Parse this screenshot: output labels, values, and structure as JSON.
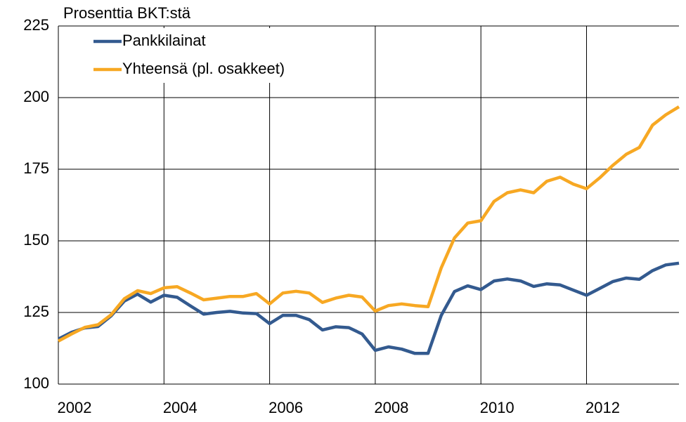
{
  "chart_data": {
    "type": "line",
    "title": "Prosenttia BKT:stä",
    "x": [
      2002,
      2002.25,
      2002.5,
      2002.75,
      2003,
      2003.25,
      2003.5,
      2003.75,
      2004,
      2004.25,
      2004.5,
      2004.75,
      2005,
      2005.25,
      2005.5,
      2005.75,
      2006,
      2006.25,
      2006.5,
      2006.75,
      2007,
      2007.25,
      2007.5,
      2007.75,
      2008,
      2008.25,
      2008.5,
      2008.75,
      2009,
      2009.25,
      2009.5,
      2009.75,
      2010,
      2010.25,
      2010.5,
      2010.75,
      2011,
      2011.25,
      2011.5,
      2011.75,
      2012,
      2012.25,
      2012.5,
      2012.75,
      2013,
      2013.25,
      2013.5,
      2013.75
    ],
    "series": [
      {
        "name": "Pankkilainat",
        "color": "#335a8f",
        "values": [
          115.7,
          118.1,
          119.6,
          120.1,
          123.8,
          129.0,
          131.4,
          128.6,
          131.0,
          130.3,
          127.3,
          124.4,
          125.0,
          125.4,
          124.8,
          124.6,
          121.1,
          124.0,
          124.0,
          122.5,
          118.9,
          120.0,
          119.7,
          117.5,
          111.8,
          113.0,
          112.2,
          110.7,
          110.7,
          124.0,
          132.3,
          134.3,
          133.0,
          136.0,
          136.7,
          136.0,
          134.1,
          135.0,
          134.6,
          132.8,
          131.0,
          133.4,
          135.8,
          137.0,
          136.6,
          139.6,
          141.6,
          142.2
        ]
      },
      {
        "name": "Yhteensä (pl. osakkeet)",
        "color": "#f7a823",
        "values": [
          115.0,
          117.5,
          119.8,
          120.7,
          124.2,
          129.8,
          132.6,
          131.6,
          133.6,
          134.0,
          131.8,
          129.4,
          130.0,
          130.6,
          130.6,
          131.6,
          128.0,
          131.8,
          132.4,
          131.8,
          128.5,
          130.0,
          131.0,
          130.4,
          125.5,
          127.4,
          128.0,
          127.4,
          127.0,
          140.6,
          151.0,
          156.2,
          157.0,
          163.8,
          166.8,
          167.8,
          166.8,
          170.8,
          172.2,
          169.8,
          168.2,
          172.0,
          176.4,
          180.2,
          182.6,
          190.4,
          194.0,
          196.8
        ]
      }
    ],
    "xlim": [
      2002,
      2013.75
    ],
    "xticks": [
      2002,
      2004,
      2006,
      2008,
      2010,
      2012
    ],
    "ylim": [
      100,
      225
    ],
    "yticks": [
      100,
      125,
      150,
      175,
      200,
      225
    ],
    "grid": true,
    "legend": "upper left"
  }
}
